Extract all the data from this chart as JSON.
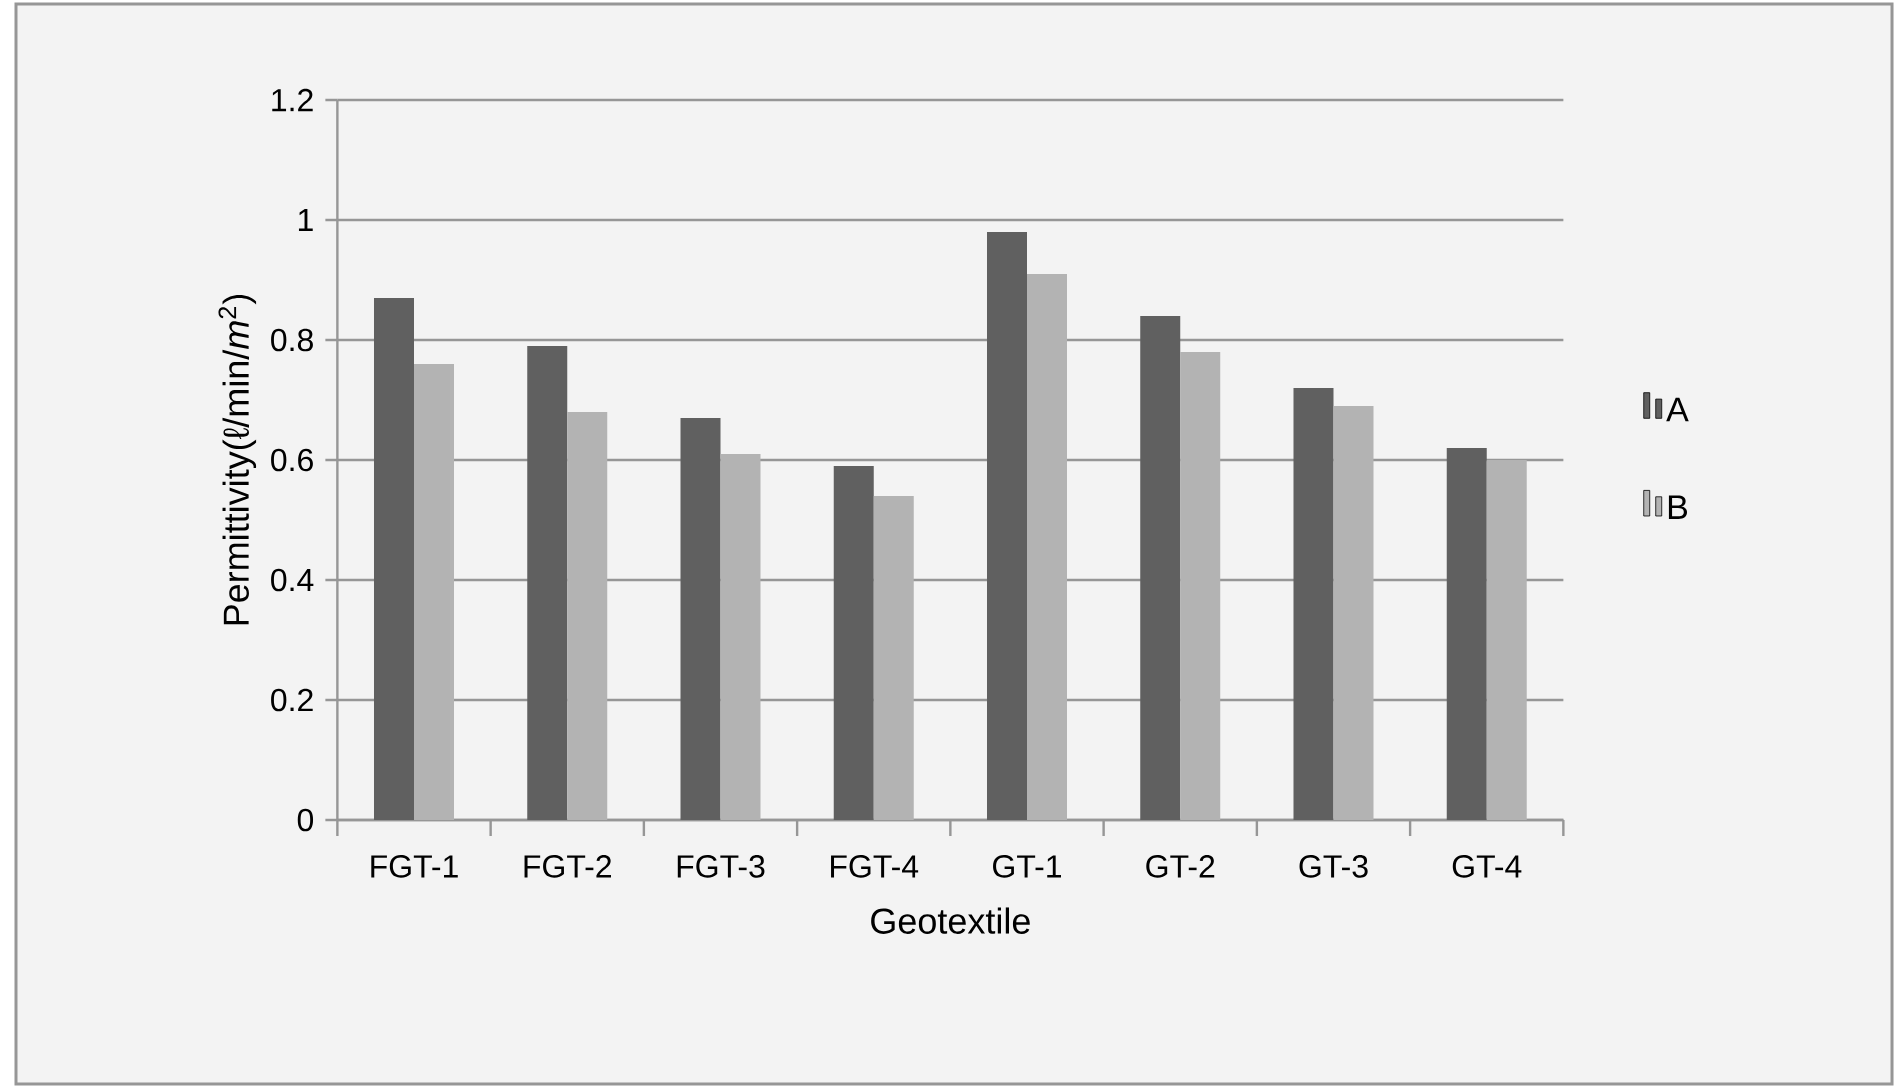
{
  "chart_data": {
    "type": "bar",
    "xlabel": "Geotextile",
    "ylabel": "Permittivity(ℓ/min/*m*$^{2}$)",
    "categories": [
      "FGT-1",
      "FGT-2",
      "FGT-3",
      "FGT-4",
      "GT-1",
      "GT-2",
      "GT-3",
      "GT-4"
    ],
    "series": [
      {
        "name": "A",
        "color": "#606060",
        "values": [
          0.87,
          0.79,
          0.67,
          0.59,
          0.98,
          0.84,
          0.72,
          0.62
        ]
      },
      {
        "name": "B",
        "color": "#b3b3b3",
        "values": [
          0.76,
          0.68,
          0.61,
          0.54,
          0.91,
          0.78,
          0.69,
          0.6
        ]
      }
    ],
    "ylim": [
      0,
      1.2
    ],
    "yticks": [
      0,
      0.2,
      0.4,
      0.6,
      0.8,
      1,
      1.2
    ],
    "grid": "y",
    "legend": "right"
  }
}
